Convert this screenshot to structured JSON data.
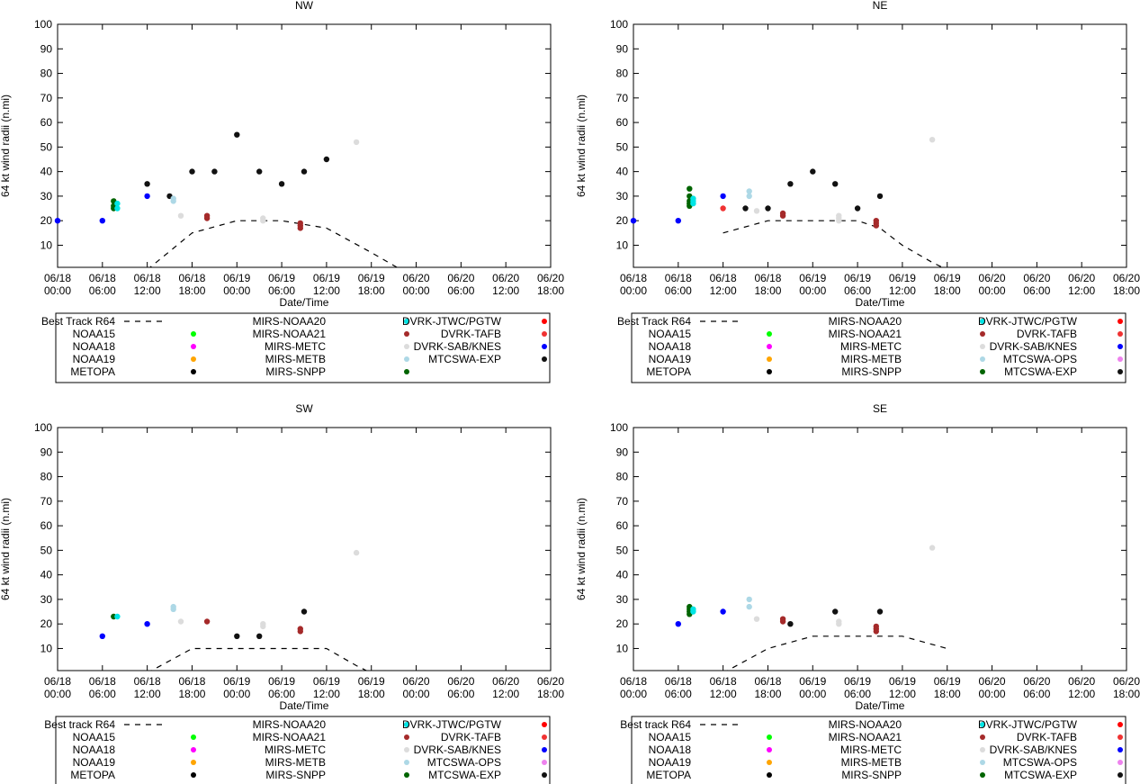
{
  "common": {
    "ylabel": "64 kt wind radii (n.mi)",
    "xlabel": "Date/Time",
    "yticks": [
      "10",
      "20",
      "30",
      "40",
      "50",
      "60",
      "70",
      "80",
      "90",
      "100"
    ],
    "xticks": [
      [
        "06/18",
        "00:00"
      ],
      [
        "06/18",
        "06:00"
      ],
      [
        "06/18",
        "12:00"
      ],
      [
        "06/18",
        "18:00"
      ],
      [
        "06/19",
        "00:00"
      ],
      [
        "06/19",
        "06:00"
      ],
      [
        "06/19",
        "12:00"
      ],
      [
        "06/19",
        "18:00"
      ],
      [
        "06/20",
        "00:00"
      ],
      [
        "06/20",
        "06:00"
      ],
      [
        "06/20",
        "12:00"
      ],
      [
        "06/20",
        "18:00"
      ]
    ]
  },
  "colors": {
    "NOAA15": "#00ff00",
    "NOAA18": "#ff00ff",
    "NOAA19": "#ffa500",
    "METOPA": "#000000",
    "MIRS-NOAA20": "#00e5e5",
    "MIRS-NOAA21": "#a52a2a",
    "MIRS-METC": "#dcdcdc",
    "MIRS-METB": "#add8e6",
    "MIRS-SNPP": "#006400",
    "DVRK-JTWC/PGTW": "#ff0000",
    "DVRK-TAFB": "#f03232",
    "DVRK-SAB/KNES": "#0000ff",
    "MTCSWA-OPS": "#ee82ee",
    "MTCSWA-EXP": "#111111"
  },
  "chart_data": [
    {
      "type": "scatter",
      "title": "NW",
      "xlabel": "Date/Time",
      "ylabel": "64 kt wind radii (n.mi)",
      "ylim": [
        0,
        100
      ],
      "xlim_hours": [
        0,
        66
      ],
      "legend_labels": [
        [
          "Best Track R64",
          "NOAA15",
          "NOAA18",
          "NOAA19",
          "METOPA"
        ],
        [
          "MIRS-NOAA20",
          "MIRS-NOAA21",
          "MIRS-METC",
          "MIRS-METB",
          "MIRS-SNPP"
        ],
        [
          "DVRK-JTWC/PGTW",
          "DVRK-TAFB",
          "DVRK-SAB/KNES",
          "MTCSWA-EXP"
        ]
      ],
      "legend_colors": [
        [
          "line",
          "NOAA15",
          "NOAA18",
          "NOAA19",
          "METOPA"
        ],
        [
          "MIRS-NOAA20",
          "MIRS-NOAA21",
          "MIRS-METC",
          "MIRS-METB",
          "MIRS-SNPP"
        ],
        [
          "DVRK-JTWC/PGTW",
          "DVRK-TAFB",
          "DVRK-SAB/KNES",
          "MTCSWA-EXP"
        ]
      ],
      "best_track": [
        [
          12,
          0
        ],
        [
          18,
          15
        ],
        [
          24,
          20
        ],
        [
          30,
          20
        ],
        [
          36,
          17
        ],
        [
          42,
          7
        ],
        [
          46,
          0
        ]
      ],
      "points": [
        {
          "s": "DVRK-SAB/KNES",
          "x": 0,
          "y": 20
        },
        {
          "s": "DVRK-SAB/KNES",
          "x": 6,
          "y": 20
        },
        {
          "s": "DVRK-SAB/KNES",
          "x": 12,
          "y": 30
        },
        {
          "s": "MIRS-SNPP",
          "x": 7.5,
          "y": 28
        },
        {
          "s": "MIRS-SNPP",
          "x": 7.5,
          "y": 26
        },
        {
          "s": "MIRS-SNPP",
          "x": 7.5,
          "y": 25
        },
        {
          "s": "MIRS-NOAA20",
          "x": 8,
          "y": 27
        },
        {
          "s": "MIRS-NOAA20",
          "x": 8,
          "y": 25
        },
        {
          "s": "MTCSWA-EXP",
          "x": 12,
          "y": 35
        },
        {
          "s": "MTCSWA-EXP",
          "x": 15,
          "y": 30
        },
        {
          "s": "MIRS-METB",
          "x": 15.5,
          "y": 29
        },
        {
          "s": "MIRS-METB",
          "x": 15.5,
          "y": 28
        },
        {
          "s": "MIRS-METC",
          "x": 16.5,
          "y": 22
        },
        {
          "s": "MTCSWA-EXP",
          "x": 18,
          "y": 40
        },
        {
          "s": "MIRS-NOAA21",
          "x": 20,
          "y": 22
        },
        {
          "s": "MIRS-NOAA21",
          "x": 20,
          "y": 21
        },
        {
          "s": "MTCSWA-EXP",
          "x": 21,
          "y": 40
        },
        {
          "s": "MTCSWA-EXP",
          "x": 24,
          "y": 55
        },
        {
          "s": "MTCSWA-EXP",
          "x": 27,
          "y": 40
        },
        {
          "s": "MIRS-METC",
          "x": 27.5,
          "y": 21
        },
        {
          "s": "MIRS-METC",
          "x": 27.5,
          "y": 20
        },
        {
          "s": "MTCSWA-EXP",
          "x": 30,
          "y": 35
        },
        {
          "s": "MIRS-NOAA21",
          "x": 32.5,
          "y": 19
        },
        {
          "s": "MIRS-NOAA21",
          "x": 32.5,
          "y": 18
        },
        {
          "s": "MIRS-NOAA21",
          "x": 32.5,
          "y": 17
        },
        {
          "s": "MTCSWA-EXP",
          "x": 33,
          "y": 40
        },
        {
          "s": "MTCSWA-EXP",
          "x": 36,
          "y": 45
        },
        {
          "s": "MIRS-METC",
          "x": 40,
          "y": 52
        }
      ]
    },
    {
      "type": "scatter",
      "title": "NE",
      "xlabel": "Date/Time",
      "ylabel": "64 kt wind radii (n.mi)",
      "ylim": [
        0,
        100
      ],
      "xlim_hours": [
        0,
        66
      ],
      "legend_labels": [
        [
          "Best Track R64",
          "NOAA15",
          "NOAA18",
          "NOAA19",
          "METOPA"
        ],
        [
          "MIRS-NOAA20",
          "MIRS-NOAA21",
          "MIRS-METC",
          "MIRS-METB",
          "MIRS-SNPP"
        ],
        [
          "DVRK-JTWC/PGTW",
          "DVRK-TAFB",
          "DVRK-SAB/KNES",
          "MTCSWA-OPS",
          "MTCSWA-EXP"
        ]
      ],
      "legend_colors": [
        [
          "line",
          "NOAA15",
          "NOAA18",
          "NOAA19",
          "METOPA"
        ],
        [
          "MIRS-NOAA20",
          "MIRS-NOAA21",
          "MIRS-METC",
          "MIRS-METB",
          "MIRS-SNPP"
        ],
        [
          "DVRK-JTWC/PGTW",
          "DVRK-TAFB",
          "DVRK-SAB/KNES",
          "MTCSWA-OPS",
          "MTCSWA-EXP"
        ]
      ],
      "best_track": [
        [
          12,
          15
        ],
        [
          18,
          20
        ],
        [
          24,
          20
        ],
        [
          30,
          20
        ],
        [
          33,
          17
        ],
        [
          36,
          10
        ],
        [
          40,
          3
        ],
        [
          42,
          0
        ]
      ],
      "points": [
        {
          "s": "DVRK-SAB/KNES",
          "x": 0,
          "y": 20
        },
        {
          "s": "DVRK-SAB/KNES",
          "x": 6,
          "y": 20
        },
        {
          "s": "DVRK-SAB/KNES",
          "x": 12,
          "y": 30
        },
        {
          "s": "DVRK-TAFB",
          "x": 12,
          "y": 25
        },
        {
          "s": "MIRS-SNPP",
          "x": 7.5,
          "y": 33
        },
        {
          "s": "MIRS-SNPP",
          "x": 7.5,
          "y": 30
        },
        {
          "s": "MIRS-SNPP",
          "x": 7.5,
          "y": 28
        },
        {
          "s": "MIRS-SNPP",
          "x": 7.5,
          "y": 27
        },
        {
          "s": "MIRS-SNPP",
          "x": 7.5,
          "y": 26
        },
        {
          "s": "MIRS-NOAA20",
          "x": 8,
          "y": 29
        },
        {
          "s": "MIRS-NOAA20",
          "x": 8,
          "y": 28
        },
        {
          "s": "MIRS-NOAA20",
          "x": 8,
          "y": 27
        },
        {
          "s": "MTCSWA-EXP",
          "x": 15,
          "y": 25
        },
        {
          "s": "MIRS-METB",
          "x": 15.5,
          "y": 32
        },
        {
          "s": "MIRS-METB",
          "x": 15.5,
          "y": 30
        },
        {
          "s": "MIRS-METC",
          "x": 16.5,
          "y": 24
        },
        {
          "s": "MTCSWA-EXP",
          "x": 18,
          "y": 25
        },
        {
          "s": "MIRS-NOAA21",
          "x": 20,
          "y": 23
        },
        {
          "s": "MIRS-NOAA21",
          "x": 20,
          "y": 22
        },
        {
          "s": "MTCSWA-EXP",
          "x": 21,
          "y": 35
        },
        {
          "s": "MTCSWA-EXP",
          "x": 24,
          "y": 40
        },
        {
          "s": "MTCSWA-EXP",
          "x": 27,
          "y": 35
        },
        {
          "s": "MIRS-METC",
          "x": 27.5,
          "y": 22
        },
        {
          "s": "MIRS-METC",
          "x": 27.5,
          "y": 21
        },
        {
          "s": "MIRS-METC",
          "x": 27.5,
          "y": 20
        },
        {
          "s": "MTCSWA-EXP",
          "x": 30,
          "y": 25
        },
        {
          "s": "MIRS-NOAA21",
          "x": 32.5,
          "y": 20
        },
        {
          "s": "MIRS-NOAA21",
          "x": 32.5,
          "y": 19
        },
        {
          "s": "MIRS-NOAA21",
          "x": 32.5,
          "y": 18
        },
        {
          "s": "MTCSWA-EXP",
          "x": 33,
          "y": 30
        },
        {
          "s": "MIRS-METC",
          "x": 40,
          "y": 53
        }
      ]
    },
    {
      "type": "scatter",
      "title": "SW",
      "xlabel": "Date/Time",
      "ylabel": "64 kt wind radii (n.mi)",
      "ylim": [
        0,
        100
      ],
      "xlim_hours": [
        0,
        66
      ],
      "legend_labels": [
        [
          "Best track R64",
          "NOAA15",
          "NOAA18",
          "NOAA19",
          "METOPA"
        ],
        [
          "MIRS-NOAA20",
          "MIRS-NOAA21",
          "MIRS-METC",
          "MIRS-METB",
          "MIRS-SNPP"
        ],
        [
          "DVRK-JTWC/PGTW",
          "DVRK-TAFB",
          "DVRK-SAB/KNES",
          "MTCSWA-OPS",
          "MTCSWA-EXP"
        ]
      ],
      "legend_colors": [
        [
          "line",
          "NOAA15",
          "NOAA18",
          "NOAA19",
          "METOPA"
        ],
        [
          "MIRS-NOAA20",
          "MIRS-NOAA21",
          "MIRS-METC",
          "MIRS-METB",
          "MIRS-SNPP"
        ],
        [
          "DVRK-JTWC/PGTW",
          "DVRK-TAFB",
          "DVRK-SAB/KNES",
          "MTCSWA-OPS",
          "MTCSWA-EXP"
        ]
      ],
      "best_track": [
        [
          12,
          0
        ],
        [
          18,
          10
        ],
        [
          24,
          10
        ],
        [
          30,
          10
        ],
        [
          36,
          10
        ],
        [
          40,
          3
        ],
        [
          42,
          0
        ]
      ],
      "points": [
        {
          "s": "DVRK-SAB/KNES",
          "x": 6,
          "y": 15
        },
        {
          "s": "DVRK-SAB/KNES",
          "x": 12,
          "y": 20
        },
        {
          "s": "MIRS-SNPP",
          "x": 7.5,
          "y": 23
        },
        {
          "s": "MIRS-NOAA20",
          "x": 8,
          "y": 23
        },
        {
          "s": "MIRS-METB",
          "x": 15.5,
          "y": 27
        },
        {
          "s": "MIRS-METB",
          "x": 15.5,
          "y": 26
        },
        {
          "s": "MIRS-METC",
          "x": 16.5,
          "y": 21
        },
        {
          "s": "MIRS-NOAA21",
          "x": 20,
          "y": 21
        },
        {
          "s": "MTCSWA-EXP",
          "x": 24,
          "y": 15
        },
        {
          "s": "MTCSWA-EXP",
          "x": 27,
          "y": 15
        },
        {
          "s": "MIRS-METC",
          "x": 27.5,
          "y": 20
        },
        {
          "s": "MIRS-METC",
          "x": 27.5,
          "y": 19
        },
        {
          "s": "MIRS-NOAA21",
          "x": 32.5,
          "y": 18
        },
        {
          "s": "MIRS-NOAA21",
          "x": 32.5,
          "y": 17
        },
        {
          "s": "MTCSWA-EXP",
          "x": 33,
          "y": 25
        },
        {
          "s": "MIRS-METC",
          "x": 40,
          "y": 49
        }
      ]
    },
    {
      "type": "scatter",
      "title": "SE",
      "xlabel": "Date/Time",
      "ylabel": "64 kt wind radii (n.mi)",
      "ylim": [
        0,
        100
      ],
      "xlim_hours": [
        0,
        66
      ],
      "legend_labels": [
        [
          "Best track R64",
          "NOAA15",
          "NOAA18",
          "NOAA19",
          "METOPA"
        ],
        [
          "MIRS-NOAA20",
          "MIRS-NOAA21",
          "MIRS-METC",
          "MIRS-METB",
          "MIRS-SNPP"
        ],
        [
          "DVRK-JTWC/PGTW",
          "DVRK-TAFB",
          "DVRK-SAB/KNES",
          "MTCSWA-OPS",
          "MTCSWA-EXP"
        ]
      ],
      "legend_colors": [
        [
          "line",
          "NOAA15",
          "NOAA18",
          "NOAA19",
          "METOPA"
        ],
        [
          "MIRS-NOAA20",
          "MIRS-NOAA21",
          "MIRS-METC",
          "MIRS-METB",
          "MIRS-SNPP"
        ],
        [
          "DVRK-JTWC/PGTW",
          "DVRK-TAFB",
          "DVRK-SAB/KNES",
          "MTCSWA-OPS",
          "MTCSWA-EXP"
        ]
      ],
      "best_track": [
        [
          12,
          0
        ],
        [
          18,
          10
        ],
        [
          24,
          15
        ],
        [
          30,
          15
        ],
        [
          36,
          15
        ],
        [
          42,
          10
        ]
      ],
      "points": [
        {
          "s": "DVRK-SAB/KNES",
          "x": 6,
          "y": 20
        },
        {
          "s": "DVRK-SAB/KNES",
          "x": 12,
          "y": 25
        },
        {
          "s": "MIRS-SNPP",
          "x": 7.5,
          "y": 27
        },
        {
          "s": "MIRS-SNPP",
          "x": 7.5,
          "y": 26
        },
        {
          "s": "MIRS-SNPP",
          "x": 7.5,
          "y": 25
        },
        {
          "s": "MIRS-SNPP",
          "x": 7.5,
          "y": 24
        },
        {
          "s": "MIRS-NOAA20",
          "x": 8,
          "y": 26
        },
        {
          "s": "MIRS-NOAA20",
          "x": 8,
          "y": 25
        },
        {
          "s": "MIRS-METB",
          "x": 15.5,
          "y": 30
        },
        {
          "s": "MIRS-METB",
          "x": 15.5,
          "y": 27
        },
        {
          "s": "MIRS-METC",
          "x": 16.5,
          "y": 22
        },
        {
          "s": "MIRS-NOAA21",
          "x": 20,
          "y": 22
        },
        {
          "s": "MIRS-NOAA21",
          "x": 20,
          "y": 21
        },
        {
          "s": "MTCSWA-EXP",
          "x": 21,
          "y": 20
        },
        {
          "s": "MTCSWA-EXP",
          "x": 27,
          "y": 25
        },
        {
          "s": "MIRS-METC",
          "x": 27.5,
          "y": 21
        },
        {
          "s": "MIRS-METC",
          "x": 27.5,
          "y": 20
        },
        {
          "s": "MIRS-NOAA21",
          "x": 32.5,
          "y": 19
        },
        {
          "s": "MIRS-NOAA21",
          "x": 32.5,
          "y": 18
        },
        {
          "s": "MIRS-NOAA21",
          "x": 32.5,
          "y": 17
        },
        {
          "s": "MTCSWA-EXP",
          "x": 33,
          "y": 25
        },
        {
          "s": "MIRS-METC",
          "x": 40,
          "y": 51
        }
      ]
    }
  ]
}
